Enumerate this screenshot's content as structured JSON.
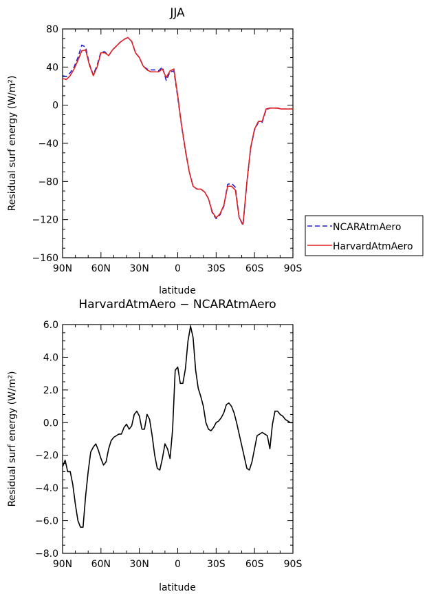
{
  "chart_data": [
    {
      "type": "line",
      "title": "JJA",
      "xlabel": "latitude",
      "ylabel": "Residual surf energy (W/m²)",
      "xlim": [
        90,
        -90
      ],
      "ylim": [
        -160,
        80
      ],
      "x_ticks": [
        90,
        60,
        30,
        0,
        -30,
        -60,
        -90
      ],
      "x_tick_labels": [
        "90N",
        "60N",
        "30N",
        "0",
        "30S",
        "60S",
        "90S"
      ],
      "y_ticks": [
        -160,
        -120,
        -80,
        -40,
        0,
        40,
        80
      ],
      "y_tick_labels": [
        "−160",
        "−120",
        "−80",
        "−40",
        "0",
        "40",
        "80"
      ],
      "grid": false,
      "legend_position": "right",
      "series": [
        {
          "name": "NCARAtmAero",
          "color": "#1f1fd6",
          "dash": "dashed",
          "x": [
            90,
            87,
            84,
            81,
            78,
            75,
            72,
            69,
            66,
            63,
            60,
            57,
            54,
            51,
            48,
            45,
            42,
            39,
            36,
            33,
            30,
            27,
            24,
            21,
            18,
            15,
            12,
            9,
            6,
            3,
            0,
            -3,
            -6,
            -9,
            -12,
            -15,
            -18,
            -21,
            -24,
            -27,
            -30,
            -33,
            -36,
            -39,
            -42,
            -45,
            -48,
            -51,
            -54,
            -57,
            -60,
            -63,
            -66,
            -69,
            -72,
            -75,
            -78,
            -81,
            -84,
            -87,
            -90
          ],
          "y": [
            31,
            30,
            34,
            40,
            50,
            63,
            61,
            43,
            32,
            42,
            56,
            56,
            52,
            58,
            62,
            66,
            69,
            71,
            67,
            55,
            50,
            41,
            38,
            37,
            37,
            36,
            40,
            26,
            35,
            36,
            8,
            -22,
            -48,
            -70,
            -85,
            -88,
            -88,
            -91,
            -98,
            -113,
            -119,
            -115,
            -106,
            -83,
            -82,
            -86,
            -118,
            -126,
            -82,
            -45,
            -26,
            -18,
            -18,
            -5,
            -3,
            -3,
            -3,
            -4,
            -4,
            -4,
            -4
          ]
        },
        {
          "name": "HarvardAtmAero",
          "color": "#e02020",
          "dash": "solid",
          "x": [
            90,
            87,
            84,
            81,
            78,
            75,
            72,
            69,
            66,
            63,
            60,
            57,
            54,
            51,
            48,
            45,
            42,
            39,
            36,
            33,
            30,
            27,
            24,
            21,
            18,
            15,
            12,
            9,
            6,
            3,
            0,
            -3,
            -6,
            -9,
            -12,
            -15,
            -18,
            -21,
            -24,
            -27,
            -30,
            -33,
            -36,
            -39,
            -42,
            -45,
            -48,
            -51,
            -54,
            -57,
            -60,
            -63,
            -66,
            -69,
            -72,
            -75,
            -78,
            -81,
            -84,
            -87,
            -90
          ],
          "y": [
            28,
            27,
            31,
            38,
            47,
            57,
            58,
            42,
            31,
            40,
            55,
            55,
            52,
            58,
            62,
            66,
            69,
            71,
            67,
            55,
            50,
            41,
            37,
            35,
            35,
            35,
            38,
            29,
            36,
            38,
            10,
            -21,
            -47,
            -70,
            -85,
            -88,
            -88,
            -91,
            -98,
            -112,
            -118,
            -114,
            -105,
            -85,
            -85,
            -89,
            -118,
            -125,
            -81,
            -44,
            -25,
            -17,
            -17,
            -4,
            -3,
            -3,
            -3,
            -4,
            -4,
            -4,
            -4
          ]
        }
      ]
    },
    {
      "type": "line",
      "title": "HarvardAtmAero − NCARAtmAero",
      "xlabel": "latitude",
      "ylabel": "Residual surf energy (W/m²)",
      "xlim": [
        90,
        -90
      ],
      "ylim": [
        -8,
        6
      ],
      "x_ticks": [
        90,
        60,
        30,
        0,
        -30,
        -60,
        -90
      ],
      "x_tick_labels": [
        "90N",
        "60N",
        "30N",
        "0",
        "30S",
        "60S",
        "90S"
      ],
      "y_ticks": [
        -8,
        -6,
        -4,
        -2,
        0,
        2,
        4,
        6
      ],
      "y_tick_labels": [
        "−8.0",
        "−6.0",
        "−4.0",
        "−2.0",
        "0.0",
        "2.0",
        "4.0",
        "6.0"
      ],
      "grid": false,
      "series": [
        {
          "color": "#000000",
          "dash": "solid",
          "x": [
            90,
            88,
            86,
            84,
            82,
            80,
            78,
            76,
            74,
            72,
            70,
            68,
            66,
            64,
            62,
            60,
            58,
            56,
            54,
            52,
            50,
            48,
            46,
            44,
            42,
            40,
            38,
            36,
            34,
            32,
            30,
            28,
            26,
            24,
            22,
            20,
            18,
            16,
            14,
            12,
            10,
            8,
            6,
            4,
            2,
            0,
            -2,
            -4,
            -6,
            -8,
            -10,
            -12,
            -14,
            -16,
            -18,
            -20,
            -22,
            -24,
            -26,
            -28,
            -30,
            -32,
            -34,
            -36,
            -38,
            -40,
            -42,
            -44,
            -46,
            -48,
            -50,
            -52,
            -54,
            -56,
            -58,
            -60,
            -62,
            -64,
            -66,
            -68,
            -70,
            -72,
            -74,
            -76,
            -78,
            -80,
            -82,
            -84,
            -86,
            -88,
            -90
          ],
          "y": [
            -2.7,
            -2.3,
            -3.0,
            -3.0,
            -3.8,
            -5.0,
            -6.0,
            -6.4,
            -6.4,
            -4.5,
            -3.0,
            -1.8,
            -1.5,
            -1.3,
            -1.7,
            -2.2,
            -2.6,
            -2.4,
            -1.6,
            -1.1,
            -0.9,
            -0.8,
            -0.7,
            -0.7,
            -0.3,
            -0.1,
            -0.4,
            -0.2,
            0.5,
            0.7,
            0.4,
            -0.4,
            -0.4,
            0.5,
            0.2,
            -0.8,
            -2.0,
            -2.8,
            -2.9,
            -2.2,
            -1.3,
            -1.6,
            -2.2,
            -0.4,
            3.2,
            3.4,
            2.4,
            2.4,
            3.3,
            5.0,
            5.9,
            5.2,
            3.2,
            2.1,
            1.6,
            1.0,
            0.0,
            -0.4,
            -0.5,
            -0.3,
            0.0,
            0.1,
            0.3,
            0.6,
            1.1,
            1.2,
            1.0,
            0.6,
            0.0,
            -0.7,
            -1.4,
            -2.1,
            -2.8,
            -2.9,
            -2.4,
            -1.6,
            -0.8,
            -0.7,
            -0.6,
            -0.7,
            -0.8,
            -1.6,
            -0.1,
            0.7,
            0.7,
            0.5,
            0.4,
            0.2,
            0.1,
            0.0,
            0.0
          ]
        }
      ]
    }
  ]
}
